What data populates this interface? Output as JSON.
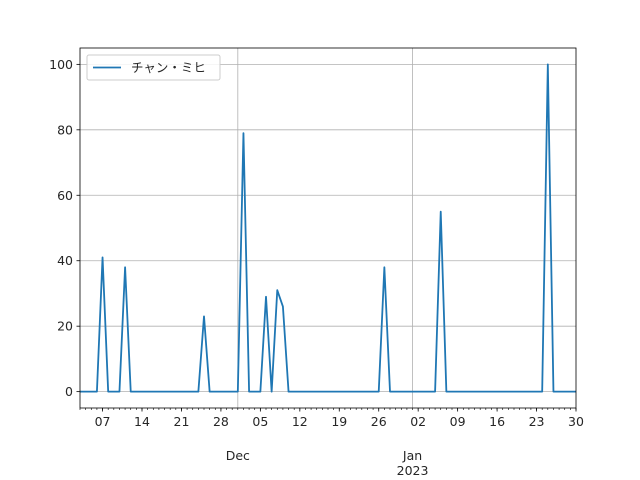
{
  "chart_data": {
    "type": "line",
    "title": "",
    "xlabel": "",
    "ylabel": "",
    "legend": {
      "placement": "top-left"
    },
    "grid": true,
    "series_color": "#1f77b4",
    "series": [
      {
        "name": "チャン・ミヒ",
        "points": [
          [
            "2022-11-03",
            0
          ],
          [
            "2022-11-06",
            0
          ],
          [
            "2022-11-07",
            41
          ],
          [
            "2022-11-08",
            0
          ],
          [
            "2022-11-10",
            0
          ],
          [
            "2022-11-11",
            38
          ],
          [
            "2022-11-12",
            0
          ],
          [
            "2022-11-24",
            0
          ],
          [
            "2022-11-25",
            23
          ],
          [
            "2022-11-26",
            0
          ],
          [
            "2022-12-01",
            0
          ],
          [
            "2022-12-02",
            79
          ],
          [
            "2022-12-03",
            0
          ],
          [
            "2022-12-05",
            0
          ],
          [
            "2022-12-06",
            29
          ],
          [
            "2022-12-07",
            0
          ],
          [
            "2022-12-08",
            31
          ],
          [
            "2022-12-09",
            26
          ],
          [
            "2022-12-10",
            0
          ],
          [
            "2022-12-26",
            0
          ],
          [
            "2022-12-27",
            38
          ],
          [
            "2022-12-28",
            0
          ],
          [
            "2023-01-05",
            0
          ],
          [
            "2023-01-06",
            55
          ],
          [
            "2023-01-07",
            0
          ],
          [
            "2023-01-24",
            0
          ],
          [
            "2023-01-25",
            100
          ],
          [
            "2023-01-26",
            0
          ],
          [
            "2023-01-30",
            0
          ]
        ]
      }
    ],
    "xlim": [
      "2022-11-03",
      "2023-01-30"
    ],
    "ylim": [
      -5,
      105
    ],
    "y_ticks": [
      "0",
      "20",
      "40",
      "60",
      "80",
      "100"
    ],
    "x_ticks": [
      {
        "date": "2022-11-07",
        "label": "07"
      },
      {
        "date": "2022-11-14",
        "label": "14"
      },
      {
        "date": "2022-11-21",
        "label": "21"
      },
      {
        "date": "2022-11-28",
        "label": "28"
      },
      {
        "date": "2022-12-05",
        "label": "05"
      },
      {
        "date": "2022-12-12",
        "label": "12"
      },
      {
        "date": "2022-12-19",
        "label": "19"
      },
      {
        "date": "2022-12-26",
        "label": "26"
      },
      {
        "date": "2023-01-02",
        "label": "02"
      },
      {
        "date": "2023-01-09",
        "label": "09"
      },
      {
        "date": "2023-01-16",
        "label": "16"
      },
      {
        "date": "2023-01-23",
        "label": "23"
      },
      {
        "date": "2023-01-30",
        "label": "30"
      }
    ],
    "month_ticks": [
      {
        "date": "2022-12-01",
        "label": "Dec"
      },
      {
        "date": "2023-01-01",
        "label": "Jan",
        "sublabel": "2023"
      }
    ]
  }
}
